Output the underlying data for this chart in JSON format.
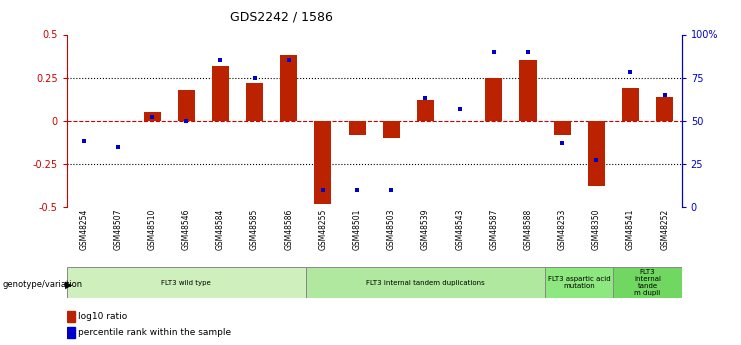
{
  "title": "GDS2242 / 1586",
  "samples": [
    "GSM48254",
    "GSM48507",
    "GSM48510",
    "GSM48546",
    "GSM48584",
    "GSM48585",
    "GSM48586",
    "GSM48255",
    "GSM48501",
    "GSM48503",
    "GSM48539",
    "GSM48543",
    "GSM48587",
    "GSM48588",
    "GSM48253",
    "GSM48350",
    "GSM48541",
    "GSM48252"
  ],
  "log10_ratio": [
    0.0,
    0.0,
    0.05,
    0.18,
    0.32,
    0.22,
    0.38,
    -0.48,
    -0.08,
    -0.1,
    0.12,
    0.0,
    0.25,
    0.35,
    -0.08,
    -0.38,
    0.19,
    0.14
  ],
  "percentile_rank": [
    38,
    35,
    52,
    50,
    85,
    75,
    85,
    10,
    10,
    10,
    63,
    57,
    90,
    90,
    37,
    27,
    78,
    65
  ],
  "groups": [
    {
      "label": "FLT3 wild type",
      "start": 0,
      "end": 7,
      "color": "#cff0bc"
    },
    {
      "label": "FLT3 internal tandem duplications",
      "start": 7,
      "end": 14,
      "color": "#b0e8a0"
    },
    {
      "label": "FLT3 aspartic acid\nmutation",
      "start": 14,
      "end": 16,
      "color": "#8ee880"
    },
    {
      "label": "FLT3\ninternal\ntande\nm dupli",
      "start": 16,
      "end": 18,
      "color": "#70d860"
    }
  ],
  "bar_color_red": "#bb2200",
  "bar_color_blue": "#0000cc",
  "ylim": [
    -0.5,
    0.5
  ],
  "yticks": [
    -0.5,
    -0.25,
    0.0,
    0.25,
    0.5
  ],
  "ytick_labels": [
    "-0.5",
    "-0.25",
    "0",
    "0.25",
    "0.5"
  ],
  "y_right_ticks": [
    0,
    25,
    50,
    75,
    100
  ],
  "y_right_labels": [
    "0",
    "25",
    "50",
    "75",
    "100%"
  ],
  "dotted_lines": [
    0.25,
    -0.25
  ],
  "zero_line_color": "#cc0000",
  "background_color": "#ffffff",
  "left_axis_color": "#cc0000",
  "right_axis_color": "#0000cc"
}
